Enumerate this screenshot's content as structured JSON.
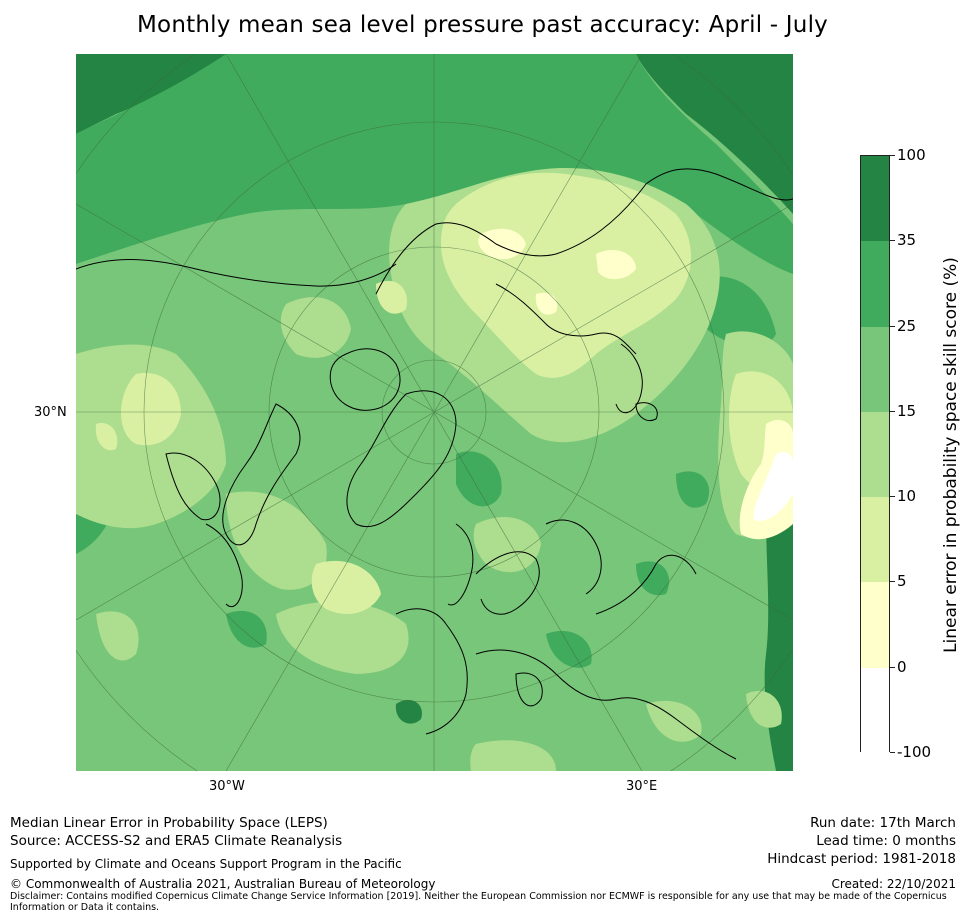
{
  "title": "Monthly mean sea level pressure past accuracy: April - July",
  "map": {
    "projection": "North polar stereographic",
    "lat_label": "30°N",
    "lon_labels": {
      "west": "30°W",
      "east": "30°E"
    },
    "colors": {
      "c100": "#238443",
      "c35": "#41ab5d",
      "c25": "#78c679",
      "c15": "#addd8e",
      "c10": "#d9f0a3",
      "c5": "#ffffcc",
      "c0": "#ffffff",
      "coast": "#000000",
      "grid": "#3d6b3d"
    }
  },
  "colorbar": {
    "label": "Linear error in probability space skill score (%)",
    "ticks": [
      "100",
      "35",
      "25",
      "15",
      "10",
      "5",
      "0",
      "-100"
    ],
    "colors": [
      "#238443",
      "#41ab5d",
      "#78c679",
      "#addd8e",
      "#d9f0a3",
      "#ffffcc",
      "#ffffff"
    ]
  },
  "footer": {
    "line1": "Median Linear Error in Probability Space (LEPS)",
    "line2": "Source: ACCESS-S2 and ERA5 Climate Reanalysis",
    "support": "Supported by Climate and Oceans Support Program in the Pacific",
    "copyright": "© Commonwealth of Australia 2021, Australian Bureau of Meteorology",
    "disclaimer": "Disclaimer: Contains modified Copernicus Climate Change Service Information [2019]. Neither the European Commission nor ECMWF is responsible for any use that may be made of the Copernicus Information or Data it contains.",
    "run_date": "Run date: 17th March",
    "lead_time": "Lead time: 0 months",
    "hindcast": "Hindcast period: 1981-2018",
    "created": "Created: 22/10/2021"
  }
}
